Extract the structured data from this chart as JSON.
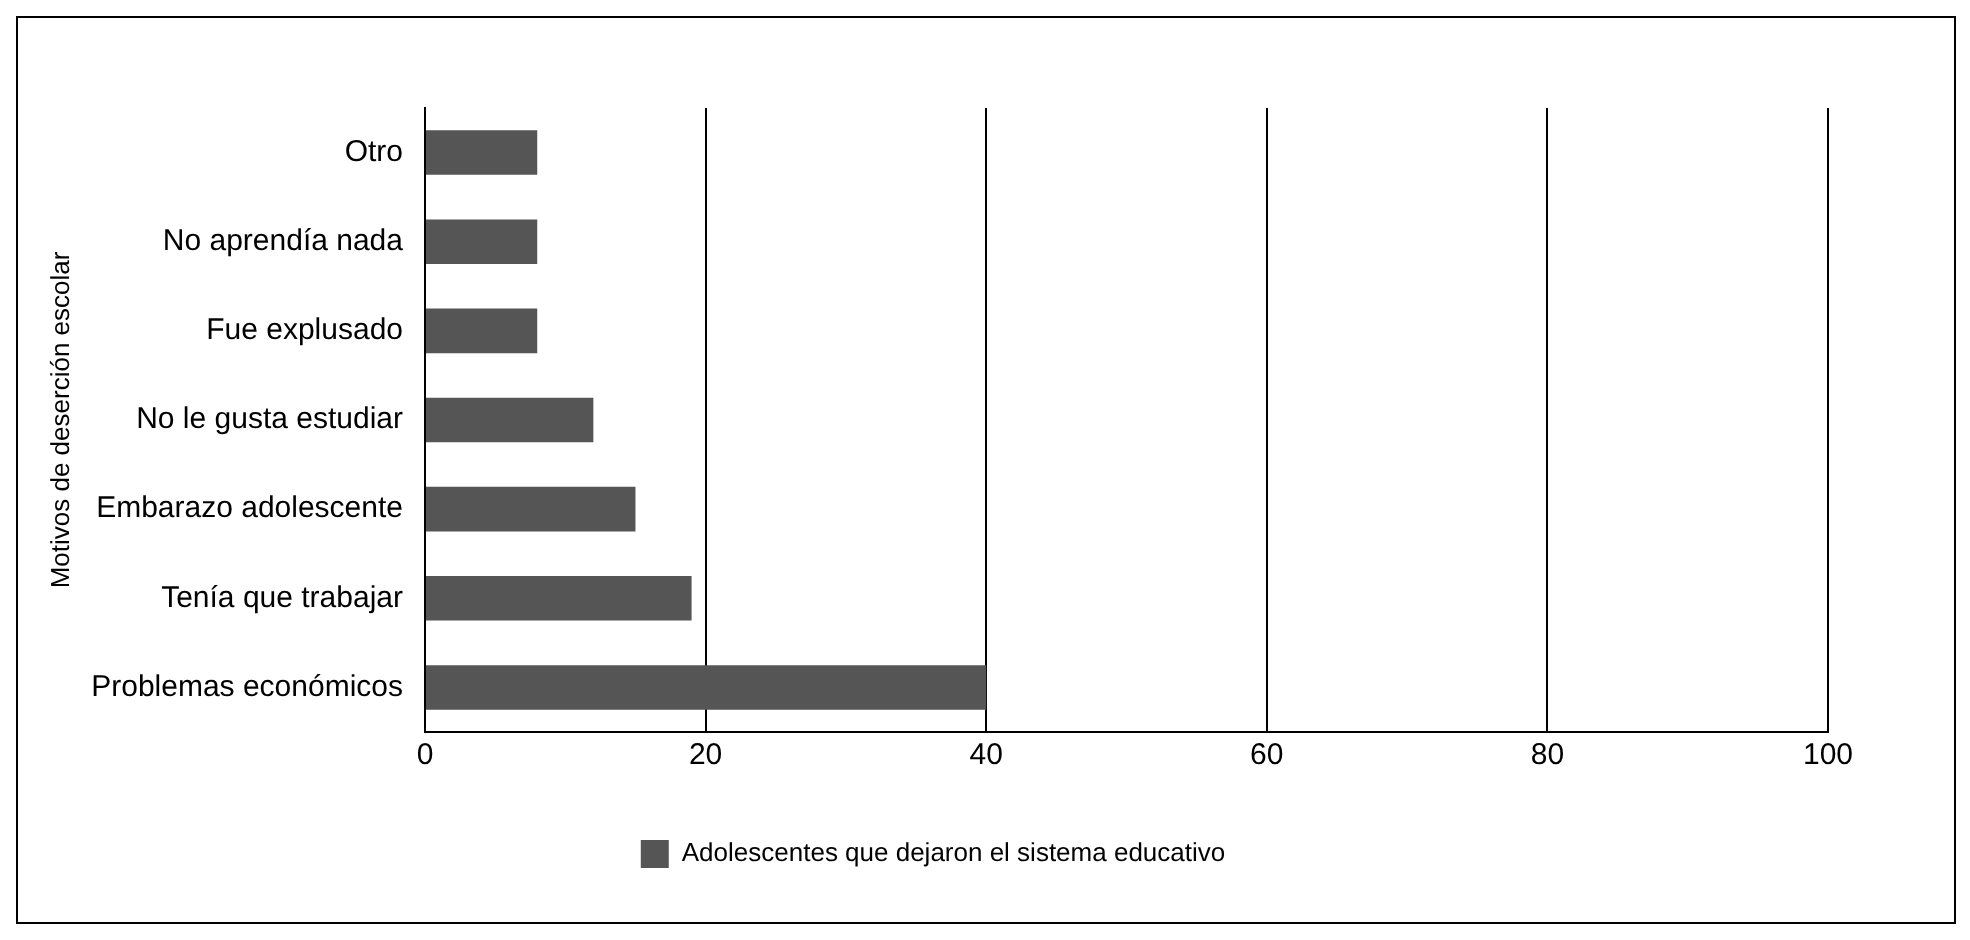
{
  "chart_data": {
    "type": "bar",
    "orientation": "horizontal",
    "ylabel": "Motivos de deserción escolar",
    "categories": [
      "Otro",
      "No aprendía nada",
      "Fue explusado",
      "No le gusta estudiar",
      "Embarazo adolescente",
      "Tenía que trabajar",
      "Problemas económicos"
    ],
    "series": [
      {
        "name": "Adolescentes que dejaron el sistema educativo",
        "color": "#555555",
        "values": [
          8,
          8,
          8,
          12,
          15,
          19,
          40
        ]
      }
    ],
    "xlim": [
      0,
      100
    ],
    "xticks": [
      0,
      20,
      40,
      60,
      80,
      100
    ],
    "grid": "x",
    "legend": "bottom"
  }
}
